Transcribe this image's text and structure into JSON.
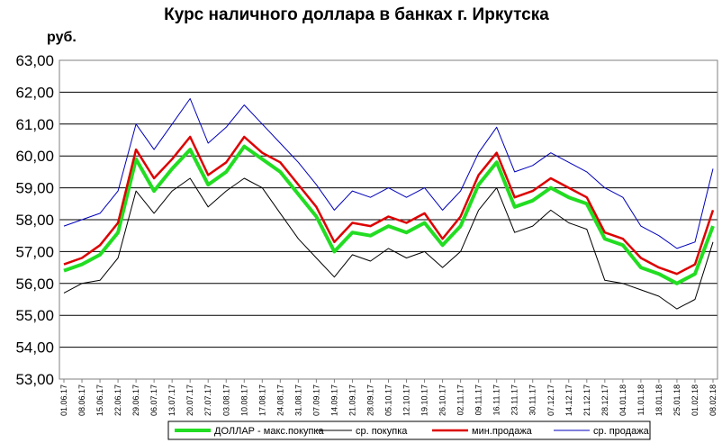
{
  "chart_data": {
    "type": "line",
    "title": "Курс наличного доллара в банках г. Иркутска",
    "ylabel": "руб.",
    "xlabel": "",
    "ylim": [
      53,
      63
    ],
    "yticks": [
      "53,00",
      "54,00",
      "55,00",
      "56,00",
      "57,00",
      "58,00",
      "59,00",
      "60,00",
      "61,00",
      "62,00",
      "63,00"
    ],
    "x_tick_labels": [
      "01.06.17",
      "08.06.17",
      "15.06.17",
      "22.06.17",
      "29.06.17",
      "06.07.17",
      "13.07.17",
      "20.07.17",
      "27.07.17",
      "03.08.17",
      "10.08.17",
      "17.08.17",
      "24.08.17",
      "31.08.17",
      "07.09.17",
      "14.09.17",
      "21.09.17",
      "28.09.17",
      "05.10.17",
      "12.10.17",
      "19.10.17",
      "26.10.17",
      "02.11.17",
      "09.11.17",
      "16.11.17",
      "23.11.17",
      "30.11.17",
      "07.12.17",
      "14.12.17",
      "21.12.17",
      "28.12.17",
      "04.01.18",
      "11.01.18",
      "18.01.18",
      "25.01.18",
      "01.02.18",
      "08.02.18"
    ],
    "grid": "horizontal",
    "legend_position": "bottom",
    "series": [
      {
        "name": "ДОЛЛАР - макс.покупка",
        "color": "#22dd22",
        "values": [
          56.4,
          56.6,
          56.9,
          57.6,
          59.9,
          58.9,
          59.6,
          60.2,
          59.1,
          59.5,
          60.3,
          59.9,
          59.5,
          58.8,
          58.1,
          57.0,
          57.6,
          57.5,
          57.8,
          57.6,
          57.9,
          57.2,
          57.8,
          59.1,
          59.8,
          58.4,
          58.6,
          59.0,
          58.7,
          58.5,
          57.4,
          57.2,
          56.5,
          56.3,
          56.0,
          56.3,
          57.8
        ]
      },
      {
        "name": "ср. покупка",
        "color": "#000000",
        "values": [
          55.7,
          56.0,
          56.1,
          56.8,
          58.9,
          58.2,
          58.9,
          59.3,
          58.4,
          58.9,
          59.3,
          59.0,
          58.2,
          57.4,
          56.8,
          56.2,
          56.9,
          56.7,
          57.1,
          56.8,
          57.0,
          56.5,
          57.0,
          58.3,
          59.0,
          57.6,
          57.8,
          58.3,
          57.9,
          57.7,
          56.1,
          56.0,
          55.8,
          55.6,
          55.2,
          55.5,
          57.3
        ]
      },
      {
        "name": "мин.продажа",
        "color": "#dd0000",
        "values": [
          56.6,
          56.8,
          57.2,
          57.9,
          60.2,
          59.3,
          59.9,
          60.6,
          59.4,
          59.8,
          60.6,
          60.1,
          59.8,
          59.1,
          58.4,
          57.3,
          57.9,
          57.8,
          58.1,
          57.9,
          58.2,
          57.4,
          58.1,
          59.4,
          60.1,
          58.7,
          58.9,
          59.3,
          59.0,
          58.7,
          57.6,
          57.4,
          56.8,
          56.5,
          56.3,
          56.6,
          58.3
        ]
      },
      {
        "name": "ср. продажа",
        "color": "#0000bb",
        "values": [
          57.8,
          58.0,
          58.2,
          58.9,
          61.0,
          60.2,
          61.0,
          61.8,
          60.4,
          60.9,
          61.6,
          61.0,
          60.4,
          59.8,
          59.1,
          58.3,
          58.9,
          58.7,
          59.0,
          58.7,
          59.0,
          58.3,
          58.9,
          60.1,
          60.9,
          59.5,
          59.7,
          60.1,
          59.8,
          59.5,
          59.0,
          58.7,
          57.8,
          57.5,
          57.1,
          57.3,
          59.6
        ]
      }
    ]
  }
}
